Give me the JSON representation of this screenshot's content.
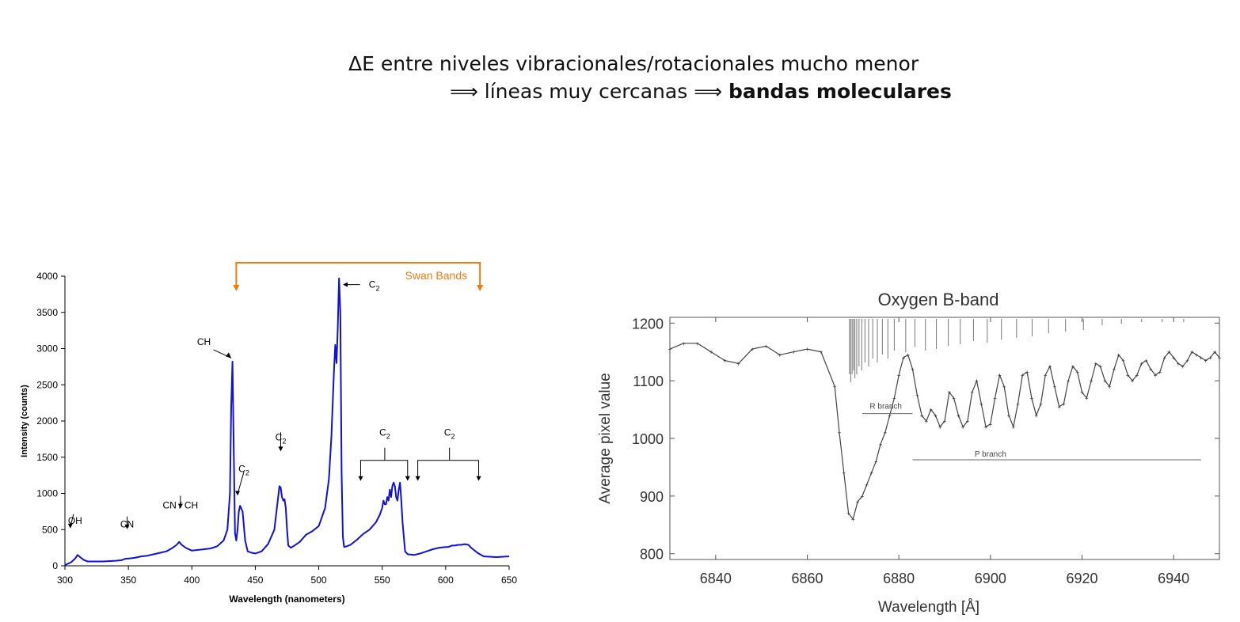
{
  "heading": {
    "line1": "ΔE entre niveles vibracionales/rotacionales mucho menor",
    "line2_prefix": "⟹ líneas muy cercanas ⟹ ",
    "line2_bold": "bandas moleculares"
  },
  "chart_data": [
    {
      "type": "line",
      "title": "",
      "xlabel": "Wavelength (nanometers)",
      "ylabel": "Intensity (counts)",
      "xlim": [
        300,
        650
      ],
      "ylim": [
        0,
        4000
      ],
      "xticks": [
        300,
        350,
        400,
        450,
        500,
        550,
        600,
        650
      ],
      "yticks": [
        0,
        500,
        1000,
        1500,
        2000,
        2500,
        3000,
        3500,
        4000
      ],
      "grid": false,
      "line_color": "#1010dd",
      "bracket_color": "#f07a10",
      "series": [
        {
          "x": [
            300,
            305,
            308,
            310,
            312,
            315,
            318,
            322,
            330,
            340,
            345,
            348,
            350,
            355,
            360,
            365,
            370,
            375,
            380,
            385,
            388,
            390,
            392,
            395,
            400,
            405,
            410,
            415,
            420,
            425,
            428,
            430,
            431,
            432,
            433,
            434,
            435,
            436,
            437,
            438,
            440,
            442,
            444,
            447,
            450,
            455,
            460,
            465,
            467,
            469,
            470,
            471,
            472,
            473,
            474,
            475,
            476,
            478,
            480,
            485,
            490,
            495,
            500,
            505,
            508,
            510,
            512,
            513,
            514,
            515,
            516,
            517,
            518,
            519,
            520,
            522,
            525,
            530,
            535,
            540,
            545,
            548,
            550,
            551,
            552,
            553,
            554,
            555,
            556,
            557,
            558,
            559,
            560,
            561,
            562,
            563,
            564,
            565,
            566,
            567,
            568,
            570,
            575,
            580,
            585,
            590,
            595,
            600,
            602,
            605,
            607,
            610,
            612,
            615,
            618,
            620,
            625,
            630,
            640,
            650
          ],
          "y": [
            10,
            50,
            100,
            150,
            120,
            80,
            60,
            60,
            60,
            70,
            80,
            100,
            100,
            110,
            130,
            140,
            160,
            180,
            200,
            250,
            290,
            330,
            290,
            250,
            210,
            220,
            230,
            240,
            270,
            350,
            500,
            1000,
            2200,
            2820,
            1600,
            450,
            350,
            500,
            750,
            830,
            750,
            350,
            200,
            180,
            170,
            200,
            300,
            500,
            800,
            1100,
            1080,
            950,
            900,
            920,
            800,
            500,
            280,
            250,
            270,
            330,
            430,
            480,
            550,
            800,
            1200,
            1800,
            2700,
            3050,
            2800,
            3300,
            3970,
            3500,
            1300,
            400,
            260,
            270,
            290,
            360,
            440,
            500,
            600,
            700,
            800,
            900,
            850,
            850,
            950,
            900,
            1050,
            950,
            1100,
            1150,
            1100,
            950,
            900,
            1050,
            1150,
            900,
            600,
            400,
            200,
            160,
            150,
            170,
            200,
            230,
            250,
            260,
            260,
            280,
            280,
            290,
            290,
            300,
            290,
            250,
            180,
            130,
            120,
            130
          ]
        }
      ],
      "annotations": [
        {
          "label": "OH",
          "x": 308,
          "y": 210
        },
        {
          "label": "CN",
          "x": 349,
          "y": 200
        },
        {
          "label": "CN / CH",
          "x": 391,
          "y": 420
        },
        {
          "label": "CH",
          "x": 427,
          "y": 3050
        },
        {
          "label": "C",
          "sub": "2",
          "x": 441,
          "y": 1100
        },
        {
          "label": "C",
          "sub": "2",
          "x": 470,
          "y": 1450
        },
        {
          "label": "C",
          "sub": "2",
          "x": 525,
          "y": 3840
        },
        {
          "label": "C",
          "sub": "2",
          "x": 552,
          "y": 1800
        },
        {
          "label": "C",
          "sub": "2",
          "x": 603,
          "y": 1800
        }
      ],
      "bracket_label": "Swan Bands"
    },
    {
      "type": "line",
      "title": "Oxygen B-band",
      "xlabel": "Wavelength [Å]",
      "ylabel": "Average pixel value",
      "xlim": [
        6830,
        6950
      ],
      "ylim": [
        790,
        1210
      ],
      "xticks": [
        6840,
        6860,
        6880,
        6900,
        6920,
        6940
      ],
      "yticks": [
        800,
        900,
        1000,
        1100,
        1200
      ],
      "grid": false,
      "line_color": "#444444",
      "series": [
        {
          "x": [
            6830,
            6833,
            6836,
            6839,
            6842,
            6845,
            6848,
            6851,
            6854,
            6857,
            6860,
            6863,
            6866,
            6867,
            6868,
            6869,
            6870,
            6871,
            6872,
            6873,
            6874,
            6875,
            6876,
            6877,
            6878,
            6879,
            6880,
            6881,
            6882,
            6883,
            6884,
            6885,
            6886,
            6887,
            6888,
            6889,
            6890,
            6891,
            6892,
            6893,
            6894,
            6895,
            6896,
            6897,
            6898,
            6899,
            6900,
            6901,
            6902,
            6903,
            6904,
            6905,
            6906,
            6907,
            6908,
            6909,
            6910,
            6911,
            6912,
            6913,
            6914,
            6915,
            6916,
            6917,
            6918,
            6919,
            6920,
            6921,
            6922,
            6923,
            6924,
            6925,
            6926,
            6927,
            6928,
            6929,
            6930,
            6931,
            6932,
            6933,
            6934,
            6935,
            6936,
            6937,
            6938,
            6939,
            6940,
            6941,
            6942,
            6943,
            6944,
            6945,
            6946,
            6947,
            6948,
            6949,
            6950
          ],
          "y": [
            1155,
            1165,
            1165,
            1150,
            1135,
            1130,
            1155,
            1160,
            1145,
            1150,
            1155,
            1150,
            1090,
            1010,
            940,
            870,
            860,
            890,
            900,
            920,
            940,
            960,
            990,
            1010,
            1040,
            1070,
            1110,
            1140,
            1145,
            1120,
            1075,
            1040,
            1030,
            1050,
            1040,
            1020,
            1030,
            1080,
            1070,
            1040,
            1020,
            1030,
            1080,
            1100,
            1060,
            1020,
            1025,
            1070,
            1110,
            1090,
            1040,
            1020,
            1060,
            1110,
            1115,
            1070,
            1040,
            1060,
            1110,
            1125,
            1090,
            1055,
            1060,
            1100,
            1125,
            1115,
            1080,
            1070,
            1100,
            1130,
            1125,
            1100,
            1090,
            1120,
            1145,
            1135,
            1110,
            1100,
            1110,
            1130,
            1135,
            1120,
            1110,
            1115,
            1140,
            1150,
            1140,
            1130,
            1125,
            1135,
            1150,
            1145,
            1140,
            1135,
            1140,
            1150,
            1140
          ]
        }
      ],
      "annotations": [
        {
          "label": "R branch"
        },
        {
          "label": "P branch"
        }
      ]
    }
  ]
}
